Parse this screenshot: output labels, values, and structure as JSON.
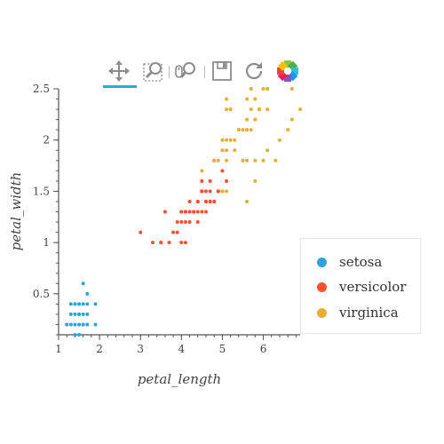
{
  "toolbar": {
    "tools": [
      {
        "name": "pan-tool",
        "icon": "pan-icon",
        "active": true
      },
      {
        "name": "box-zoom-tool",
        "icon": "box-zoom-icon",
        "active": false
      },
      {
        "name": "wheel-zoom-tool",
        "icon": "wheel-zoom-icon",
        "active": false
      },
      {
        "name": "save-tool",
        "icon": "save-icon",
        "active": false
      },
      {
        "name": "reset-tool",
        "icon": "reset-icon",
        "active": false
      },
      {
        "name": "bokeh-logo",
        "icon": "bokeh-logo-icon",
        "active": false
      }
    ],
    "active_color": "#26aae1"
  },
  "chart_data": {
    "type": "scatter",
    "xlabel": "petal_length",
    "ylabel": "petal_width",
    "xlim": [
      1.0,
      6.9
    ],
    "ylim": [
      0.1,
      2.5
    ],
    "xticks": [
      1,
      2,
      3,
      4,
      5,
      6
    ],
    "xtick_labels": [
      "1",
      "2",
      "3",
      "4",
      "5",
      "6"
    ],
    "yticks": [
      0.5,
      1,
      1.5,
      2,
      2.5
    ],
    "ytick_labels": [
      "0.5",
      "1",
      "1.5",
      "2",
      "2.5"
    ],
    "grid": false,
    "legend_placement": "right",
    "series": [
      {
        "name": "setosa",
        "color": "#30a2da",
        "x": [
          1.2,
          1.3,
          1.4,
          1.5,
          1.6,
          1.7,
          1.9,
          1.4,
          1.5,
          1.3,
          1.5,
          1.6,
          1.7,
          1.4,
          1.5,
          1.6,
          1.9,
          1.3,
          1.4,
          1.5,
          1.6,
          1.7,
          1.5,
          1.6,
          1.7
        ],
        "y": [
          0.2,
          0.2,
          0.2,
          0.2,
          0.2,
          0.2,
          0.2,
          0.3,
          0.3,
          0.3,
          0.4,
          0.4,
          0.4,
          0.1,
          0.1,
          0.2,
          0.4,
          0.4,
          0.4,
          0.4,
          0.6,
          0.5,
          0.3,
          0.3,
          0.3
        ]
      },
      {
        "name": "versicolor",
        "color": "#fc4f30",
        "x": [
          3.0,
          3.3,
          3.5,
          3.6,
          3.9,
          4.0,
          4.1,
          4.2,
          4.3,
          4.4,
          4.5,
          4.6,
          4.7,
          4.8,
          4.9,
          3.7,
          3.9,
          4.0,
          4.1,
          4.2,
          4.4,
          4.5,
          4.6,
          4.7,
          4.5,
          4.7,
          4.8,
          4.9,
          5.0,
          4.4,
          4.5,
          4.6,
          4.7,
          4.9,
          5.1,
          3.5,
          3.8,
          4.0,
          4.1,
          4.2,
          4.3,
          4.4,
          4.5,
          4.0,
          4.2,
          4.1,
          4.6,
          4.8,
          4.5,
          5.0
        ],
        "y": [
          1.1,
          1.0,
          1.0,
          1.3,
          1.1,
          1.0,
          1.0,
          1.3,
          1.3,
          1.3,
          1.3,
          1.3,
          1.4,
          1.4,
          1.5,
          1.0,
          1.2,
          1.2,
          1.2,
          1.2,
          1.2,
          1.5,
          1.5,
          1.5,
          1.6,
          1.6,
          1.8,
          1.5,
          1.7,
          1.4,
          1.5,
          1.4,
          1.4,
          1.5,
          1.6,
          1.0,
          1.1,
          1.3,
          1.3,
          1.3,
          1.3,
          1.4,
          1.5,
          1.3,
          1.4,
          1.3,
          1.4,
          1.4,
          1.5,
          1.5
        ]
      },
      {
        "name": "virginica",
        "color": "#e5ae38",
        "x": [
          5.0,
          5.1,
          5.3,
          5.4,
          5.5,
          5.6,
          5.7,
          5.8,
          5.9,
          6.0,
          6.1,
          6.3,
          6.4,
          6.6,
          6.7,
          6.9,
          4.8,
          4.9,
          5.0,
          5.1,
          5.2,
          5.3,
          5.5,
          5.6,
          5.8,
          6.0,
          5.1,
          5.2,
          5.5,
          5.6,
          5.7,
          5.8,
          6.1,
          5.0,
          5.1,
          5.4,
          5.6,
          5.7,
          5.8,
          5.9,
          6.1,
          5.1,
          5.6,
          5.7,
          6.1,
          5.8,
          6.7,
          5.6,
          5.1,
          4.5
        ],
        "y": [
          2.0,
          2.0,
          2.0,
          2.1,
          1.8,
          1.8,
          2.1,
          2.2,
          2.3,
          1.8,
          1.9,
          1.8,
          2.0,
          2.1,
          2.2,
          2.3,
          1.8,
          1.8,
          1.9,
          1.9,
          2.0,
          1.9,
          1.8,
          2.2,
          1.8,
          2.5,
          2.3,
          2.3,
          2.1,
          2.1,
          2.3,
          2.4,
          2.5,
          1.5,
          1.5,
          2.1,
          1.4,
          2.5,
          2.2,
          2.3,
          2.3,
          2.4,
          2.4,
          2.5,
          2.5,
          1.6,
          2.5,
          2.1,
          1.8,
          1.7
        ]
      }
    ]
  }
}
